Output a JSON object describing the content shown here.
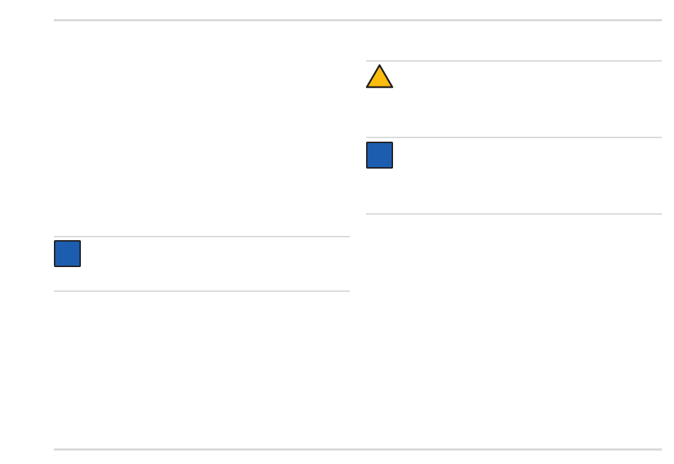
{
  "colors": {
    "rule": "#d9d9d9",
    "warning_fill": "#fbbc0e",
    "info_fill": "#1c5daf",
    "icon_border": "#231f20"
  },
  "icons": {
    "warning": "warning-triangle-icon",
    "info": "info-square-icon"
  }
}
